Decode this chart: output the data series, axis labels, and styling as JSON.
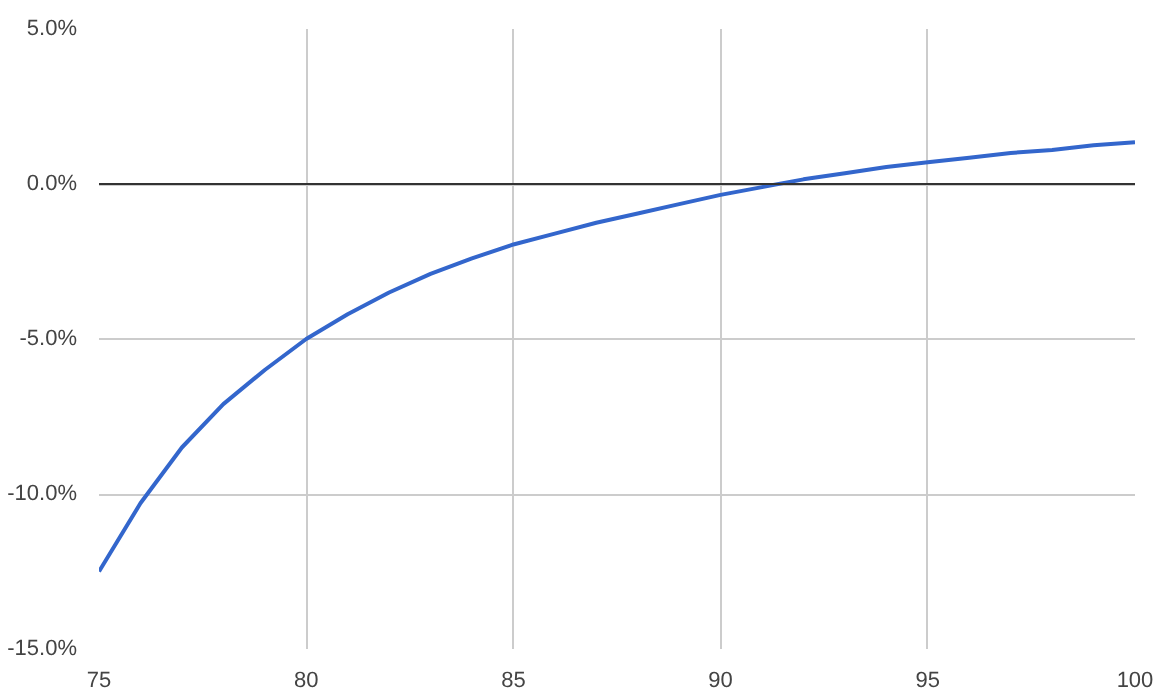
{
  "chart_data": {
    "type": "line",
    "x": [
      75,
      76,
      77,
      78,
      79,
      80,
      81,
      82,
      83,
      84,
      85,
      86,
      87,
      88,
      89,
      90,
      91,
      92,
      93,
      94,
      95,
      96,
      97,
      98,
      99,
      100
    ],
    "series": [
      {
        "color": "#3366cc",
        "values": [
          -12.5,
          -10.3,
          -8.5,
          -7.1,
          -6.0,
          -5.0,
          -4.2,
          -3.5,
          -2.9,
          -2.4,
          -1.95,
          -1.6,
          -1.25,
          -0.95,
          -0.65,
          -0.35,
          -0.1,
          0.15,
          0.35,
          0.55,
          0.7,
          0.85,
          1.0,
          1.1,
          1.25,
          1.35
        ]
      }
    ],
    "xlim": [
      75,
      100
    ],
    "xticks": [
      75,
      80,
      85,
      90,
      95,
      100
    ],
    "ylim": [
      -15,
      5
    ],
    "yticks": [
      {
        "value": -15,
        "label": "-15.0%"
      },
      {
        "value": -10,
        "label": "-10.0%"
      },
      {
        "value": -5,
        "label": "-5.0%"
      },
      {
        "value": 0,
        "label": "0.0%"
      },
      {
        "value": 5,
        "label": "5.0%"
      }
    ],
    "ref_lines": [
      {
        "axis": "y",
        "value": 0,
        "label": null,
        "color": "#333333"
      }
    ],
    "grid": true,
    "marker": "none",
    "line_style": "solid"
  }
}
